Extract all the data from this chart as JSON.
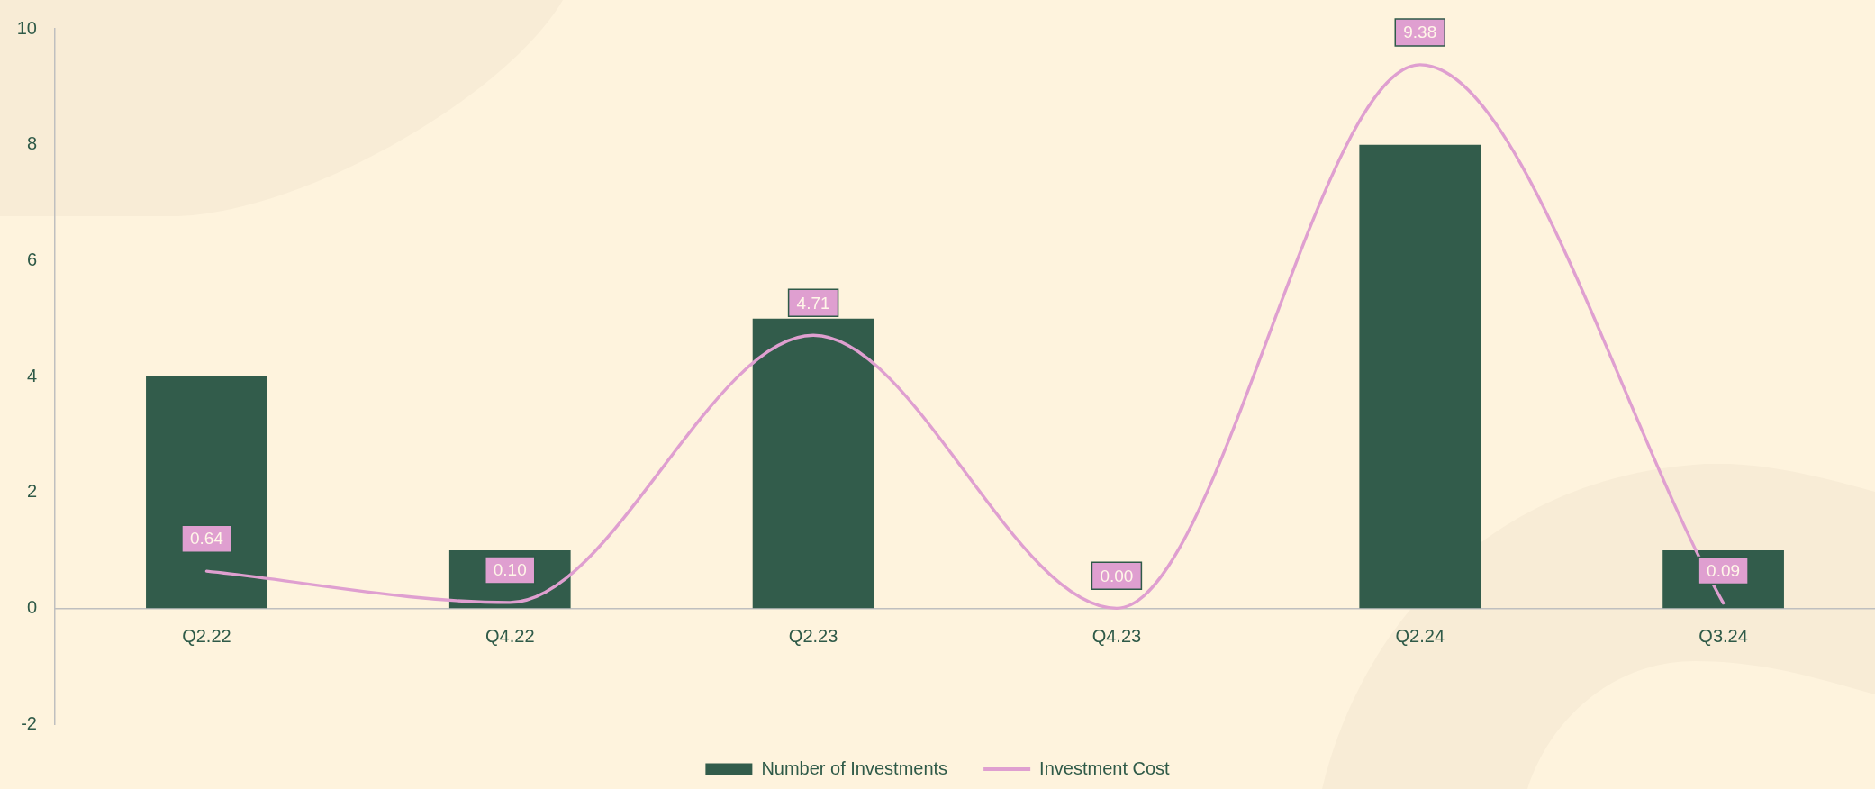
{
  "chart_data": {
    "type": "bar",
    "categories": [
      "Q2.22",
      "Q4.22",
      "Q2.23",
      "Q4.23",
      "Q2.24",
      "Q3.24"
    ],
    "series": [
      {
        "name": "Number of Investments",
        "type": "bar",
        "color": "#325c4b",
        "values": [
          4,
          1,
          5,
          0,
          8,
          1
        ]
      },
      {
        "name": "Investment Cost",
        "type": "line",
        "color": "#df9fd0",
        "values": [
          0.64,
          0.1,
          4.71,
          0.0,
          9.38,
          0.09
        ],
        "value_labels": [
          "0.64",
          "0.10",
          "4.71",
          "0.00",
          "9.38",
          "0.09"
        ]
      }
    ],
    "ylim": [
      -2,
      10
    ],
    "yticks": [
      -2,
      0,
      2,
      4,
      6,
      8,
      10
    ],
    "grid": false,
    "legend": "bottom",
    "marker": "none"
  }
}
